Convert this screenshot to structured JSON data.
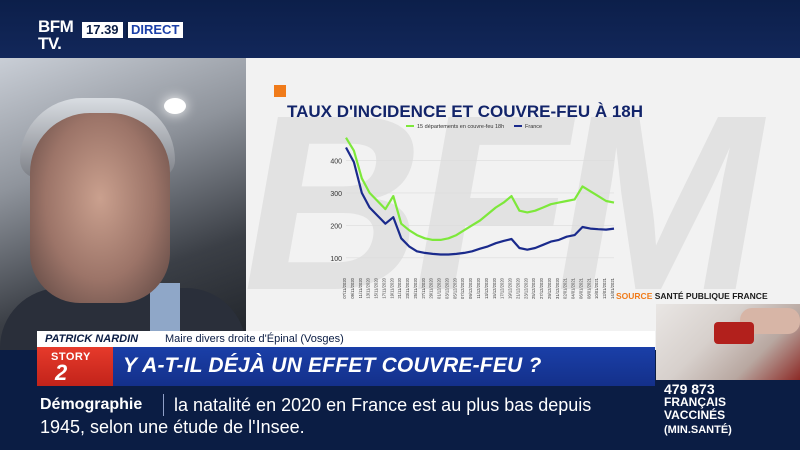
{
  "channel": {
    "logo_line1": "BFM",
    "logo_line2": "TV.",
    "time": "17.39",
    "live_label": "DIRECT"
  },
  "speaker": {
    "name": "PATRICK NARDIN",
    "role": "Maire divers droite d'Épinal (Vosges)"
  },
  "headline": {
    "story_word": "STORY",
    "story_number": "2",
    "text": "Y A-T-IL DÉJÀ UN EFFET COUVRE-FEU ?"
  },
  "chart_panel": {
    "title": "TAUX D'INCIDENCE ET COUVRE-FEU À 18H",
    "watermark": "BFM",
    "source_prefix": "SOURCE",
    "source_text": "SANTÉ PUBLIQUE FRANCE"
  },
  "chart_data": {
    "type": "line",
    "title": "TAUX D'INCIDENCE ET COUVRE-FEU À 18H",
    "xlabel": "",
    "ylabel": "",
    "ylim": [
      50,
      500
    ],
    "yticks": [
      100,
      200,
      300,
      400
    ],
    "legend_position": "top",
    "x": [
      "07/11/2020",
      "09/11/2020",
      "11/11/2020",
      "13/11/2020",
      "15/11/2020",
      "17/11/2020",
      "19/11/2020",
      "21/11/2020",
      "23/11/2020",
      "25/11/2020",
      "27/11/2020",
      "29/11/2020",
      "01/12/2020",
      "03/12/2020",
      "05/12/2020",
      "07/12/2020",
      "09/12/2020",
      "11/12/2020",
      "13/12/2020",
      "15/12/2020",
      "17/12/2020",
      "19/12/2020",
      "21/12/2020",
      "23/12/2020",
      "25/12/2020",
      "27/12/2020",
      "29/12/2020",
      "31/12/2020",
      "02/01/2021",
      "04/01/2021",
      "06/01/2021",
      "08/01/2021",
      "10/01/2021",
      "12/01/2021",
      "14/01/2021"
    ],
    "series": [
      {
        "name": "15 départements en couvre-feu 18h",
        "color": "#7de83a",
        "values": [
          470,
          430,
          345,
          300,
          275,
          250,
          290,
          205,
          185,
          170,
          160,
          155,
          155,
          160,
          170,
          185,
          200,
          215,
          235,
          255,
          270,
          290,
          245,
          240,
          245,
          255,
          265,
          270,
          275,
          280,
          320,
          305,
          290,
          275,
          270
        ]
      },
      {
        "name": "France",
        "color": "#1a2a8c",
        "values": [
          440,
          395,
          300,
          255,
          230,
          205,
          225,
          160,
          135,
          120,
          115,
          112,
          110,
          110,
          112,
          115,
          120,
          128,
          135,
          145,
          152,
          158,
          130,
          125,
          130,
          140,
          150,
          155,
          165,
          170,
          195,
          190,
          188,
          187,
          190
        ]
      }
    ]
  },
  "thumbnail": {
    "alt_icon": "vaccine-vial-icon"
  },
  "vaccine_counter": {
    "number": "479 873",
    "line1": "FRANÇAIS",
    "line2": "VACCINÉS",
    "line3": "(MIN.SANTÉ)"
  },
  "ticker": {
    "label": "Démographie",
    "line1": "la natalité en 2020 en France est au plus bas depuis",
    "line2": "1945, selon une étude de l'Insee."
  },
  "colors": {
    "brand_blue": "#1a3fa8",
    "navy": "#0b1d44",
    "story_red": "#e63a2b",
    "accent_orange": "#f07b1a"
  }
}
